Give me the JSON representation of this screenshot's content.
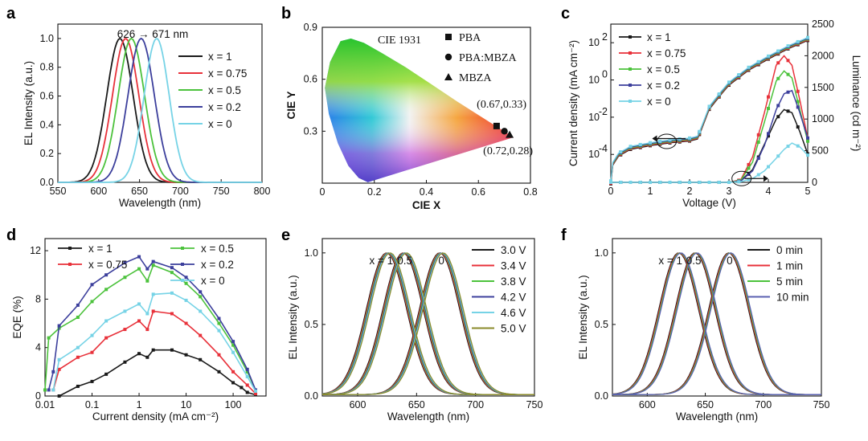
{
  "panels": {
    "a": {
      "label": "a"
    },
    "b": {
      "label": "b"
    },
    "c": {
      "label": "c"
    },
    "d": {
      "label": "d"
    },
    "e": {
      "label": "e"
    },
    "f": {
      "label": "f"
    }
  },
  "chart_data": [
    {
      "id": "a",
      "type": "line",
      "xlabel": "Wavelength (nm)",
      "ylabel": "EL Intensity (a.u.)",
      "xlim": [
        550,
        800
      ],
      "ylim": [
        0,
        1.1
      ],
      "xticks": [
        "550",
        "600",
        "650",
        "700",
        "750",
        "800"
      ],
      "yticks": [
        "0.0",
        "0.2",
        "0.4",
        "0.6",
        "0.8",
        "1.0"
      ],
      "annotation": "626 → 671 nm",
      "legend_position": "top-right",
      "series": [
        {
          "name": "x = 1",
          "color": "#1a1a1a",
          "peak": 626,
          "fwhm": 38
        },
        {
          "name": "x = 0.75",
          "color": "#e8313a",
          "peak": 633,
          "fwhm": 38
        },
        {
          "name": "x = 0.5",
          "color": "#4cc23c",
          "peak": 640,
          "fwhm": 38
        },
        {
          "name": "x = 0.2",
          "color": "#3c3f9c",
          "peak": 652,
          "fwhm": 38
        },
        {
          "name": "x = 0",
          "color": "#76d3e6",
          "peak": 671,
          "fwhm": 36
        }
      ]
    },
    {
      "id": "b",
      "type": "scatter",
      "title": "CIE 1931",
      "xlabel": "CIE X",
      "ylabel": "CIE Y",
      "xlim": [
        0,
        0.8
      ],
      "ylim": [
        0,
        0.9
      ],
      "xticks": [
        "0",
        "0.2",
        "0.4",
        "0.6",
        "0.8"
      ],
      "yticks": [
        "0.3",
        "0.6",
        "0.9"
      ],
      "annotations": [
        "(0.67,0.33)",
        "(0.72,0.28)"
      ],
      "points": [
        {
          "name": "PBA",
          "marker": "square",
          "x": 0.67,
          "y": 0.33
        },
        {
          "name": "PBA:MBZA",
          "marker": "circle",
          "x": 0.7,
          "y": 0.3
        },
        {
          "name": "MBZA",
          "marker": "triangle",
          "x": 0.72,
          "y": 0.28
        }
      ]
    },
    {
      "id": "c",
      "type": "line",
      "xlabel": "Voltage (V)",
      "ylabel": "Current density (mA cm⁻²)",
      "y2label": "Luminance (cd m⁻²)",
      "xlim": [
        0,
        5
      ],
      "ylim_log": [
        -5.5,
        3
      ],
      "y2lim": [
        0,
        2500
      ],
      "xticks": [
        "0",
        "1",
        "2",
        "3",
        "4",
        "5"
      ],
      "yticks_log": [
        -4,
        -2,
        0,
        2
      ],
      "y2ticks": [
        "0",
        "500",
        "1000",
        "1500",
        "2000",
        "2500"
      ],
      "legend_position": "top-left",
      "current_density": {
        "x": [
          0,
          0.05,
          0.2,
          0.5,
          1.0,
          1.5,
          2.0,
          2.2,
          2.3,
          2.5,
          2.8,
          3.0,
          3.5,
          4.0,
          4.5,
          5.0
        ],
        "log_y": [
          -5.5,
          -4.5,
          -4.0,
          -3.65,
          -3.45,
          -3.3,
          -3.2,
          -3.1,
          -2.6,
          -1.5,
          -0.7,
          -0.2,
          0.6,
          1.2,
          1.75,
          2.2
        ]
      },
      "series": [
        {
          "name": "x = 1",
          "color": "#1a1a1a",
          "lum_x": [
            3.0,
            3.3,
            3.6,
            3.9,
            4.2,
            4.4,
            4.6,
            4.8,
            5.0
          ],
          "lum_y": [
            0,
            25,
            200,
            600,
            1000,
            1150,
            1100,
            800,
            450
          ]
        },
        {
          "name": "x = 0.75",
          "color": "#e8313a",
          "lum_x": [
            3.0,
            3.3,
            3.6,
            3.9,
            4.2,
            4.4,
            4.6,
            4.8,
            5.0
          ],
          "lum_y": [
            0,
            40,
            400,
            1100,
            1850,
            2000,
            1850,
            1300,
            700
          ]
        },
        {
          "name": "x = 0.5",
          "color": "#4cc23c",
          "lum_x": [
            3.0,
            3.3,
            3.6,
            3.9,
            4.2,
            4.4,
            4.6,
            4.8,
            5.0
          ],
          "lum_y": [
            0,
            30,
            320,
            950,
            1600,
            1760,
            1650,
            1150,
            650
          ]
        },
        {
          "name": "x = 0.2",
          "color": "#3c3f9c",
          "lum_x": [
            3.0,
            3.3,
            3.6,
            3.9,
            4.2,
            4.4,
            4.6,
            4.8,
            5.0
          ],
          "lum_y": [
            0,
            20,
            180,
            580,
            1150,
            1400,
            1450,
            1100,
            700
          ]
        },
        {
          "name": "x = 0",
          "color": "#76d3e6",
          "lum_x": [
            3.0,
            3.3,
            3.6,
            3.9,
            4.2,
            4.4,
            4.6,
            4.8,
            5.0
          ],
          "lum_y": [
            0,
            10,
            60,
            180,
            380,
            520,
            620,
            560,
            430
          ]
        }
      ]
    },
    {
      "id": "d",
      "type": "line",
      "xlabel": "Current density (mA cm⁻²)",
      "ylabel": "EQE (%)",
      "x_scale": "log",
      "xlim": [
        0.01,
        500
      ],
      "ylim": [
        0,
        13
      ],
      "xticks": [
        "0.01",
        "0.1",
        "1",
        "10",
        "100"
      ],
      "yticks": [
        "0",
        "4",
        "8",
        "12"
      ],
      "legend_position": "top",
      "series": [
        {
          "name": "x = 1",
          "color": "#1a1a1a",
          "x": [
            0.02,
            0.05,
            0.1,
            0.2,
            0.5,
            1,
            1.5,
            2,
            5,
            10,
            20,
            50,
            100,
            150,
            200,
            300
          ],
          "y": [
            0,
            0.8,
            1.2,
            1.8,
            2.8,
            3.5,
            3.2,
            3.8,
            3.8,
            3.4,
            3.0,
            2.0,
            1.1,
            0.7,
            0.3,
            0.1
          ]
        },
        {
          "name": "x = 0.75",
          "color": "#e8313a",
          "x": [
            0.015,
            0.02,
            0.05,
            0.1,
            0.2,
            0.5,
            1,
            1.5,
            2,
            5,
            10,
            20,
            50,
            100,
            200,
            300
          ],
          "y": [
            0.5,
            2.2,
            3.2,
            3.6,
            4.8,
            5.5,
            6.2,
            5.5,
            7.0,
            6.8,
            6.0,
            5.0,
            3.4,
            2.0,
            0.9,
            0.2
          ]
        },
        {
          "name": "x = 0.5",
          "color": "#4cc23c",
          "x": [
            0.01,
            0.012,
            0.02,
            0.05,
            0.1,
            0.2,
            0.5,
            1,
            1.5,
            2,
            5,
            10,
            20,
            50,
            100,
            200,
            300
          ],
          "y": [
            0.5,
            4.8,
            5.6,
            6.5,
            7.8,
            8.8,
            9.8,
            10.5,
            9.5,
            10.8,
            10.2,
            9.3,
            8.2,
            6.0,
            4.2,
            2.0,
            0.5
          ]
        },
        {
          "name": "x = 0.2",
          "color": "#3c3f9c",
          "x": [
            0.012,
            0.015,
            0.02,
            0.05,
            0.1,
            0.2,
            0.5,
            1,
            1.5,
            2,
            5,
            10,
            20,
            50,
            100,
            200,
            300
          ],
          "y": [
            0.5,
            2.0,
            5.8,
            7.5,
            9.2,
            10.0,
            11.0,
            11.5,
            10.5,
            11.1,
            10.6,
            9.8,
            8.6,
            6.4,
            4.5,
            2.2,
            0.5
          ]
        },
        {
          "name": "x = 0",
          "color": "#76d3e6",
          "x": [
            0.015,
            0.02,
            0.05,
            0.1,
            0.2,
            0.5,
            1,
            1.5,
            2,
            5,
            10,
            20,
            50,
            100,
            200,
            300
          ],
          "y": [
            0.5,
            3.0,
            4.0,
            5.0,
            6.2,
            7.0,
            7.6,
            6.8,
            8.4,
            8.5,
            7.9,
            7.0,
            5.4,
            3.6,
            1.6,
            0.4
          ]
        }
      ]
    },
    {
      "id": "e",
      "type": "line",
      "xlabel": "Wavelength (nm)",
      "ylabel": "EL Intensity (a.u.)",
      "xlim": [
        570,
        750
      ],
      "ylim": [
        0,
        1.1
      ],
      "xticks": [
        "600",
        "650",
        "700",
        "750"
      ],
      "yticks": [
        "0.0",
        "0.5",
        "1.0"
      ],
      "peak_labels": [
        {
          "text": "x = 1",
          "x": 620
        },
        {
          "text": "0.5",
          "x": 640
        },
        {
          "text": "0",
          "x": 671
        }
      ],
      "peaks": [
        626,
        640,
        671
      ],
      "fwhm": 40,
      "legend_position": "top-right",
      "series": [
        {
          "name": "3.0 V",
          "color": "#1a1a1a"
        },
        {
          "name": "3.4 V",
          "color": "#e8313a"
        },
        {
          "name": "3.8 V",
          "color": "#4cc23c"
        },
        {
          "name": "4.2 V",
          "color": "#3c3f9c"
        },
        {
          "name": "4.6 V",
          "color": "#76d3e6"
        },
        {
          "name": "5.0 V",
          "color": "#8a8a2a"
        }
      ]
    },
    {
      "id": "f",
      "type": "line",
      "xlabel": "Wavelength (nm)",
      "ylabel": "EL Intensity (a.u.)",
      "xlim": [
        570,
        750
      ],
      "ylim": [
        0,
        1.1
      ],
      "xticks": [
        "600",
        "650",
        "700",
        "750"
      ],
      "yticks": [
        "0.0",
        "0.5",
        "1.0"
      ],
      "peak_labels": [
        {
          "text": "x = 1",
          "x": 620
        },
        {
          "text": "0.5",
          "x": 640
        },
        {
          "text": "0",
          "x": 671
        }
      ],
      "peaks": [
        628,
        642,
        671
      ],
      "fwhm": 40,
      "legend_position": "top-right",
      "series": [
        {
          "name": "0 min",
          "color": "#1a1a1a"
        },
        {
          "name": "1 min",
          "color": "#e8313a"
        },
        {
          "name": "5 min",
          "color": "#4cc23c"
        },
        {
          "name": "10 min",
          "color": "#5a5fb0"
        }
      ]
    }
  ]
}
